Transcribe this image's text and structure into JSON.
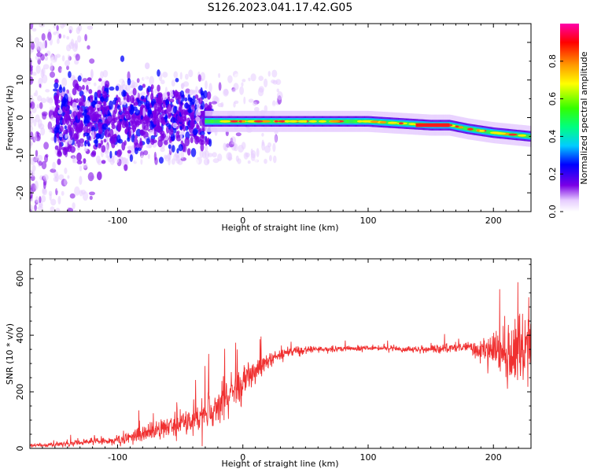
{
  "title": "S126.2023.041.17.42.G05",
  "chart_data": [
    {
      "type": "heatmap",
      "xlabel": "Height of straight line (km)",
      "ylabel": "Frequency (Hz)",
      "xlim": [
        -170,
        230
      ],
      "ylim": [
        -25,
        25
      ],
      "xticks": [
        -100,
        0,
        100,
        200
      ],
      "yticks": [
        -20,
        -10,
        0,
        10,
        20
      ],
      "colorbar": {
        "label": "Normalized spectral amplitude",
        "range": [
          0,
          1
        ],
        "ticks": [
          "0.0",
          "0.2",
          "0.4",
          "0.6",
          "0.8"
        ]
      },
      "ridge": {
        "x": [
          -30,
          -10,
          0,
          50,
          100,
          150,
          165,
          180,
          200,
          230
        ],
        "freq": [
          -1,
          -1,
          -1,
          -1,
          -1,
          -2,
          -2,
          -3,
          -4,
          -5
        ]
      }
    },
    {
      "type": "line",
      "xlabel": "Height of straight line (km)",
      "ylabel": "SNR (10 * v/v)",
      "xlim": [
        -170,
        230
      ],
      "ylim": [
        0,
        670
      ],
      "xticks": [
        -100,
        0,
        100,
        200
      ],
      "yticks": [
        0,
        200,
        400,
        600
      ],
      "color": "#f03030",
      "series": [
        {
          "x": [
            -170,
            -140,
            -120,
            -100,
            -80,
            -60,
            -40,
            -30,
            -20,
            -10,
            0,
            10,
            20,
            30,
            40,
            60,
            100,
            150,
            180,
            200,
            215,
            230
          ],
          "y": [
            10,
            15,
            25,
            30,
            50,
            75,
            100,
            120,
            150,
            190,
            230,
            270,
            310,
            330,
            345,
            350,
            355,
            350,
            360,
            340,
            330,
            350
          ],
          "noise": [
            5,
            8,
            10,
            15,
            25,
            35,
            45,
            55,
            65,
            55,
            45,
            35,
            25,
            20,
            15,
            10,
            8,
            10,
            20,
            60,
            120,
            150
          ]
        }
      ]
    }
  ]
}
